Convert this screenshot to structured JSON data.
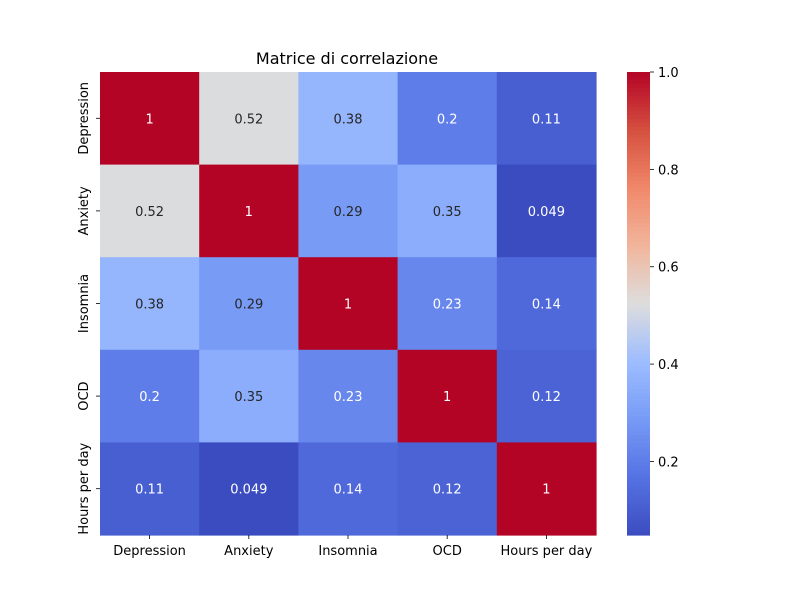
{
  "chart_data": {
    "type": "heatmap",
    "title": "Matrice di correlazione",
    "categories": [
      "Depression",
      "Anxiety",
      "Insomnia",
      "OCD",
      "Hours per day"
    ],
    "rows": [
      "Depression",
      "Anxiety",
      "Insomnia",
      "OCD",
      "Hours per day"
    ],
    "values": [
      [
        1,
        0.52,
        0.38,
        0.2,
        0.11
      ],
      [
        0.52,
        1,
        0.29,
        0.35,
        0.049
      ],
      [
        0.38,
        0.29,
        1,
        0.23,
        0.14
      ],
      [
        0.2,
        0.35,
        0.23,
        1,
        0.12
      ],
      [
        0.11,
        0.049,
        0.14,
        0.12,
        1
      ]
    ],
    "value_labels": [
      [
        "1",
        "0.52",
        "0.38",
        "0.2",
        "0.11"
      ],
      [
        "0.52",
        "1",
        "0.29",
        "0.35",
        "0.049"
      ],
      [
        "0.38",
        "0.29",
        "1",
        "0.23",
        "0.14"
      ],
      [
        "0.2",
        "0.35",
        "0.23",
        "1",
        "0.12"
      ],
      [
        "0.11",
        "0.049",
        "0.14",
        "0.12",
        "1"
      ]
    ],
    "colormap": "coolwarm",
    "colorbar": {
      "range": [
        0.049,
        1.0
      ],
      "ticks": [
        0.2,
        0.4,
        0.6,
        0.8,
        1.0
      ],
      "tick_labels": [
        "0.2",
        "0.4",
        "0.6",
        "0.8",
        "1.0"
      ]
    },
    "colors": {
      "low": "#3b4cc0",
      "mid": "#dddddd",
      "high": "#b40426",
      "text_light": "#ffffff",
      "text_dark": "#262626"
    }
  }
}
